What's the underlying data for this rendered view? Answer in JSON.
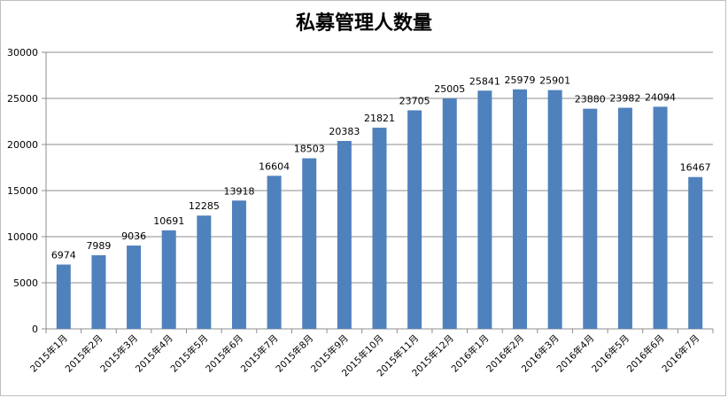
{
  "chart_data": {
    "type": "bar",
    "title": "私募管理人数量",
    "xlabel": "",
    "ylabel": "",
    "ylim": [
      0,
      30000
    ],
    "yticks": [
      0,
      5000,
      10000,
      15000,
      20000,
      25000,
      30000
    ],
    "grid": true,
    "legend": "none",
    "bar_color": "#4f81bd",
    "categories": [
      "2015年1月",
      "2015年2月",
      "2015年3月",
      "2015年4月",
      "2015年5月",
      "2015年6月",
      "2015年7月",
      "2015年8月",
      "2015年9月",
      "2015年10月",
      "2015年11月",
      "2015年12月",
      "2016年1月",
      "2016年2月",
      "2016年3月",
      "2016年4月",
      "2016年5月",
      "2016年6月",
      "2016年7月"
    ],
    "values": [
      6974,
      7989,
      9036,
      10691,
      12285,
      13918,
      16604,
      18503,
      20383,
      21821,
      23705,
      25005,
      25841,
      25979,
      25901,
      23880,
      23982,
      24094,
      16467
    ]
  }
}
